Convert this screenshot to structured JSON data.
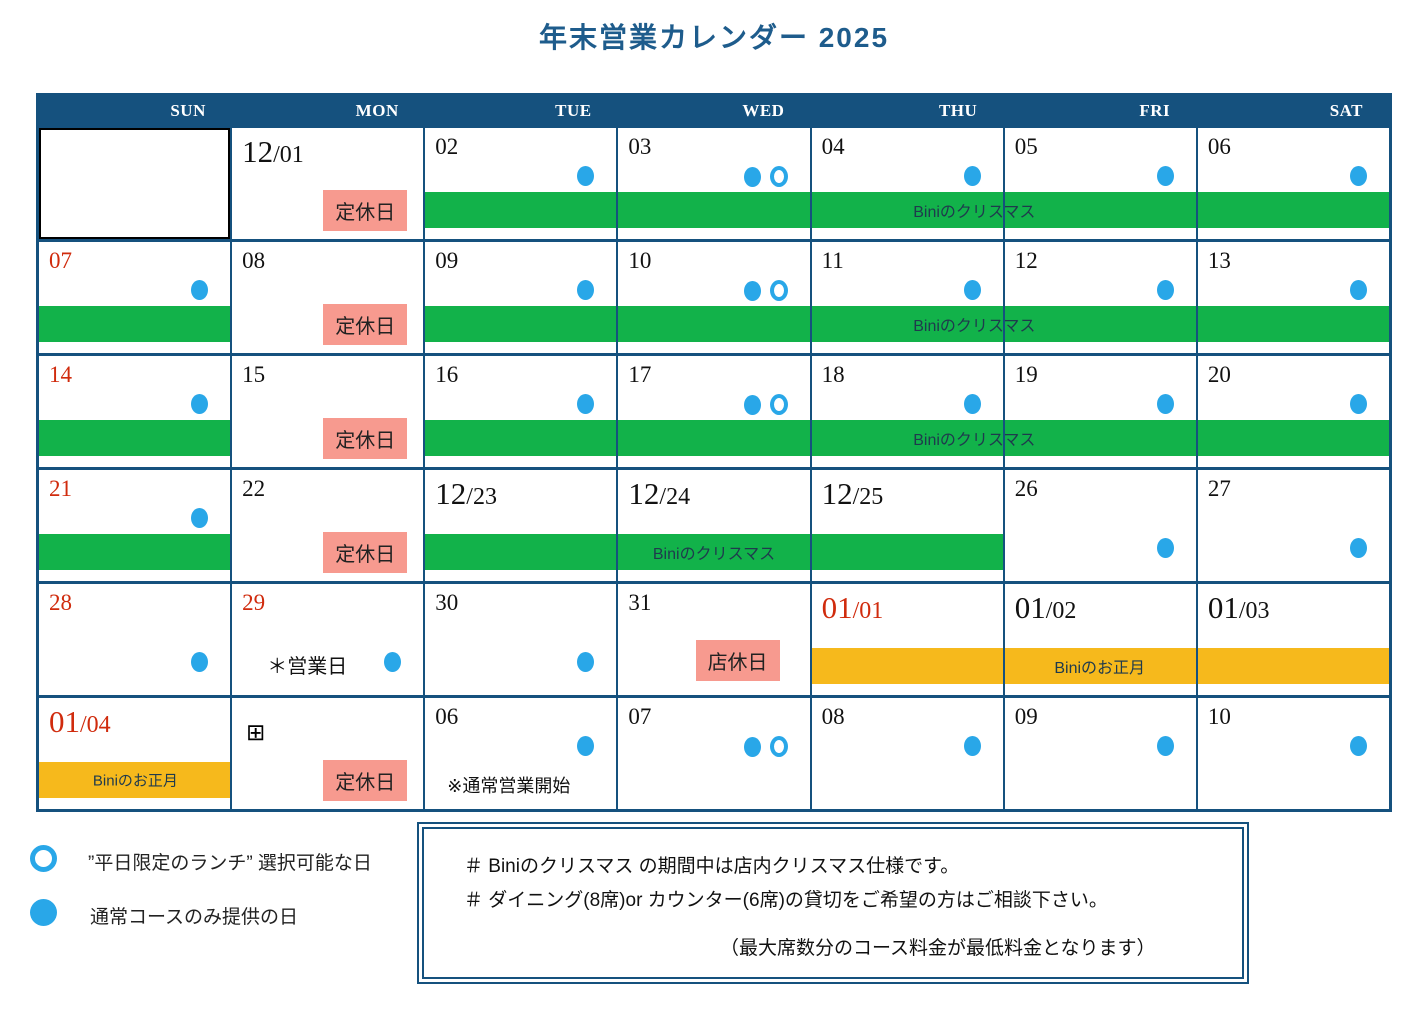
{
  "title": "年末営業カレンダー 2025",
  "weekday_headers": [
    "SUN",
    "MON",
    "TUE",
    "WED",
    "THU",
    "FRI",
    "SAT"
  ],
  "labels": {
    "closed_badge": "定休日",
    "shop_closed_badge": "店休日",
    "open_note": "＊営業日",
    "resume_note": "※通常営業開始",
    "christmas": "Biniのクリスマス",
    "newyear": "Biniのお正月",
    "tofu": "⊞"
  },
  "legend": [
    {
      "symbol": "open-circle",
      "label": "”平日限定のランチ” 選択可能な日"
    },
    {
      "symbol": "filled-circle",
      "label": "通常コースのみ提供の日"
    }
  ],
  "notes": {
    "line1": "＃ Biniのクリスマス の期間中は店内クリスマス仕様です。",
    "line2": "＃ ダイニング(8席)or カウンター(6席)の貸切をご希望の方はご相談下さい。",
    "line3": "（最大席数分のコース料金が最低料金となります）"
  },
  "colors": {
    "navy": "#15517E",
    "title_blue": "#1E5C8C",
    "green": "#12B24A",
    "orange": "#F6B91C",
    "pink": "#F79A8F",
    "dot_blue": "#29A7E8",
    "red_date": "#D02B0D"
  },
  "weeks": [
    {
      "bars": [
        {
          "color": "green",
          "start": 2,
          "end": 7,
          "label": "Biniのクリスマス",
          "label_pos": 57
        }
      ],
      "cells": [
        {
          "empty": true,
          "black_border": true
        },
        {
          "date": "12/01",
          "big": true,
          "badge": "teikyu"
        },
        {
          "date": "02",
          "dots": "filled"
        },
        {
          "date": "03",
          "dots": "both"
        },
        {
          "date": "04",
          "dots": "filled"
        },
        {
          "date": "05",
          "dots": "filled"
        },
        {
          "date": "06",
          "dots": "filled"
        }
      ]
    },
    {
      "bars": [
        {
          "color": "green",
          "start": 0,
          "end": 1
        },
        {
          "color": "green",
          "start": 2,
          "end": 7,
          "label": "Biniのクリスマス",
          "label_pos": 57
        }
      ],
      "cells": [
        {
          "date": "07",
          "red": true,
          "dots": "filled"
        },
        {
          "date": "08",
          "badge": "teikyu"
        },
        {
          "date": "09",
          "dots": "filled"
        },
        {
          "date": "10",
          "dots": "both"
        },
        {
          "date": "11",
          "dots": "filled"
        },
        {
          "date": "12",
          "dots": "filled"
        },
        {
          "date": "13",
          "dots": "filled"
        }
      ]
    },
    {
      "bars": [
        {
          "color": "green",
          "start": 0,
          "end": 1
        },
        {
          "color": "green",
          "start": 2,
          "end": 7,
          "label": "Biniのクリスマス",
          "label_pos": 57
        }
      ],
      "cells": [
        {
          "date": "14",
          "red": true,
          "dots": "filled"
        },
        {
          "date": "15",
          "badge": "teikyu"
        },
        {
          "date": "16",
          "dots": "filled"
        },
        {
          "date": "17",
          "dots": "both"
        },
        {
          "date": "18",
          "dots": "filled"
        },
        {
          "date": "19",
          "dots": "filled"
        },
        {
          "date": "20",
          "dots": "filled"
        }
      ]
    },
    {
      "bars": [
        {
          "color": "green",
          "start": 0,
          "end": 1
        },
        {
          "color": "green",
          "start": 2,
          "end": 5,
          "label": "Biniのクリスマス",
          "label_pos": 50
        }
      ],
      "cells": [
        {
          "date": "21",
          "red": true,
          "dots": "filled"
        },
        {
          "date": "22",
          "badge": "teikyu"
        },
        {
          "date": "12/23",
          "big": true
        },
        {
          "date": "12/24",
          "big": true
        },
        {
          "date": "12/25",
          "big": true
        },
        {
          "date": "26",
          "dots": "filled",
          "dot_pos": "low"
        },
        {
          "date": "27",
          "dots": "filled",
          "dot_pos": "low"
        }
      ]
    },
    {
      "bars": [
        {
          "color": "orange",
          "start": 4,
          "end": 7,
          "label": "Biniのお正月",
          "label_pos": 50
        }
      ],
      "cells": [
        {
          "date": "28",
          "red": true,
          "dots": "filled",
          "dot_pos": "low"
        },
        {
          "date": "29",
          "red": true,
          "note": "open_note",
          "dots": "filled",
          "dot_pos": "low"
        },
        {
          "date": "30",
          "dots": "filled",
          "dot_pos": "low"
        },
        {
          "date": "31",
          "badge": "tenkyu"
        },
        {
          "date": "01/01",
          "big": true,
          "red": true
        },
        {
          "date": "01/02",
          "big": true
        },
        {
          "date": "01/03",
          "big": true
        }
      ]
    },
    {
      "bars": [
        {
          "color": "orange",
          "start": 0,
          "end": 1,
          "label": "Biniのお正月",
          "label_pos": 50,
          "small": true
        }
      ],
      "cells": [
        {
          "date": "01/04",
          "big": true,
          "red": true
        },
        {
          "tofu": true,
          "badge": "teikyu"
        },
        {
          "date": "06",
          "dots": "filled",
          "note": "resume_note"
        },
        {
          "date": "07",
          "dots": "both"
        },
        {
          "date": "08",
          "dots": "filled"
        },
        {
          "date": "09",
          "dots": "filled"
        },
        {
          "date": "10",
          "dots": "filled"
        }
      ]
    }
  ]
}
